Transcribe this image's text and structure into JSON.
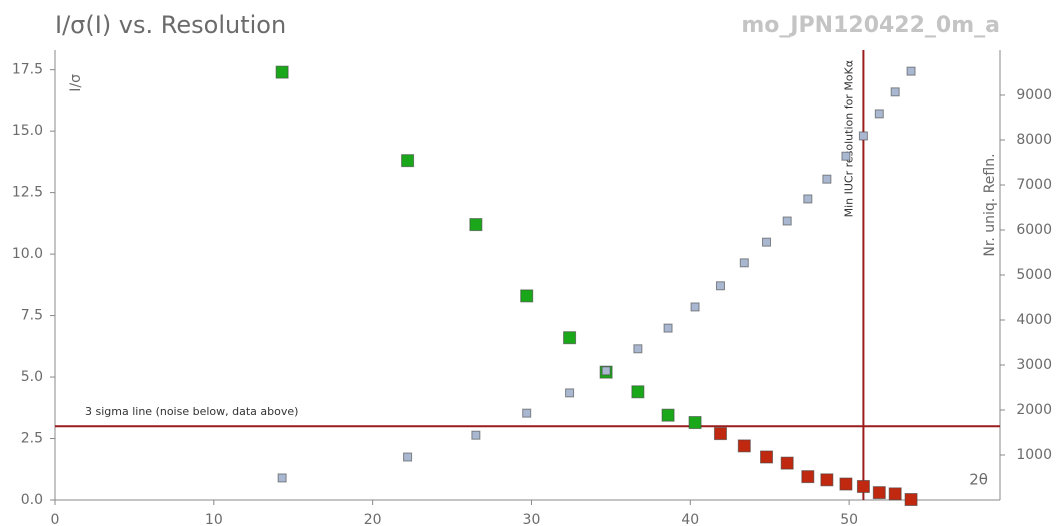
{
  "chart_data": {
    "type": "scatter",
    "title": "I/σ(I) vs. Resolution",
    "subtitle": "mo_JPN120422_0m_a",
    "y_label": "I/σ",
    "y2_label": "Nr. uniq. Refln.",
    "x_label": "2θ",
    "xlim": [
      0,
      59.5
    ],
    "xticks": [
      0,
      10,
      20,
      30,
      40,
      50
    ],
    "ylim": [
      0,
      18.3
    ],
    "yticks": [
      {
        "value": 0,
        "label": "0.0"
      },
      {
        "value": 2.5,
        "label": "2.5"
      },
      {
        "value": 5,
        "label": "5.0"
      },
      {
        "value": 7.5,
        "label": "7.5"
      },
      {
        "value": 10,
        "label": "10.0"
      },
      {
        "value": 12.5,
        "label": "12.5"
      },
      {
        "value": 15,
        "label": "15.0"
      },
      {
        "value": 17.5,
        "label": "17.5"
      }
    ],
    "y2lim": [
      0,
      10000
    ],
    "y2ticks": [
      1000,
      2000,
      3000,
      4000,
      5000,
      6000,
      7000,
      8000,
      9000
    ],
    "series": [
      {
        "color": "#1aa81a",
        "size": 12,
        "x": [
          14.3,
          22.2,
          26.5,
          29.7,
          32.4,
          34.7,
          36.7,
          38.6,
          40.3
        ],
        "values": [
          17.4,
          13.8,
          11.2,
          8.3,
          6.6,
          5.2,
          4.4,
          3.45,
          3.15
        ]
      },
      {
        "color": "#c0280f",
        "size": 12,
        "x": [
          41.9,
          43.4,
          44.8,
          46.1,
          47.4,
          48.6,
          49.8,
          50.9,
          51.9,
          52.9,
          53.9
        ],
        "values": [
          2.7,
          2.2,
          1.75,
          1.5,
          0.95,
          0.82,
          0.65,
          0.55,
          0.3,
          0.25,
          0.02
        ]
      },
      {
        "color": "#a9b8d0",
        "size": 8,
        "axis": "y2",
        "x": [
          14.3,
          22.2,
          26.5,
          29.7,
          32.4,
          34.7,
          36.7,
          38.6,
          40.3,
          41.9,
          43.4,
          44.8,
          46.1,
          47.4,
          48.6,
          49.8,
          50.9,
          51.9,
          52.9,
          53.9
        ],
        "values": [
          490,
          955,
          1440,
          1930,
          2380,
          2870,
          3360,
          3820,
          4290,
          4760,
          5270,
          5730,
          6200,
          6690,
          7130,
          7640,
          8090,
          8580,
          9070,
          9530
        ]
      }
    ],
    "hlines": [
      {
        "value": 3,
        "label": "3 sigma line (noise below, data above)",
        "color": "#9b1c1c"
      }
    ],
    "vlines": [
      {
        "value": 50.9,
        "label": "Min IUCr resolution for MoKα",
        "color": "#9b1c1c"
      }
    ]
  }
}
